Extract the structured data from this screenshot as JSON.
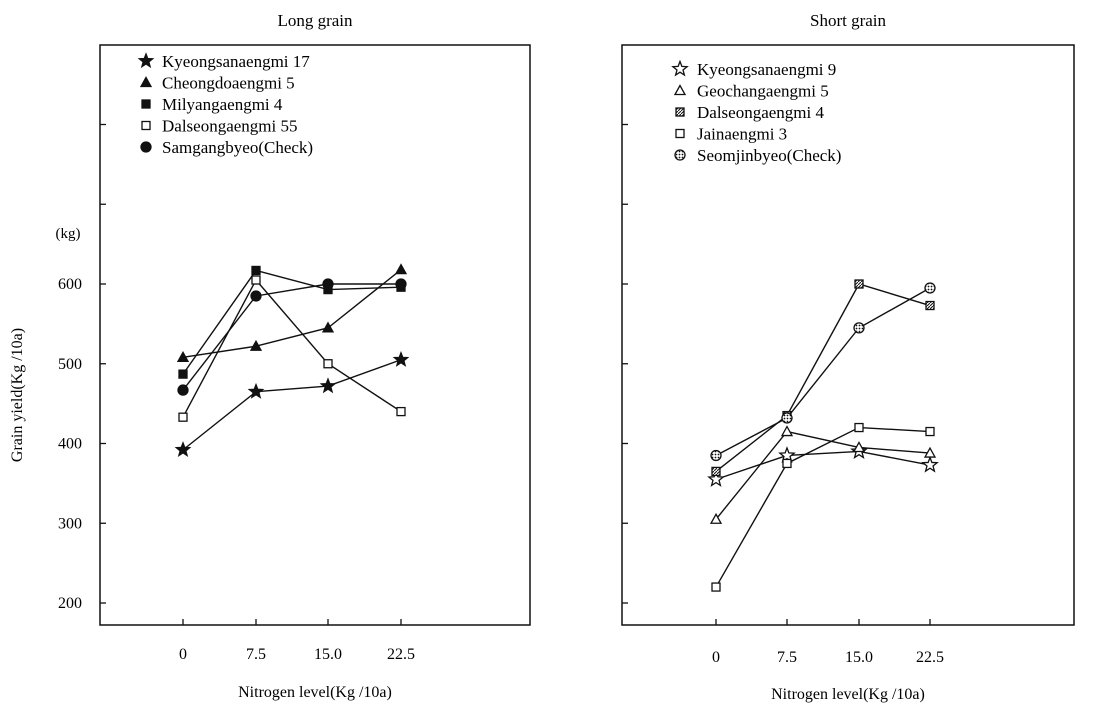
{
  "chart_data": [
    {
      "type": "line",
      "title": "Long grain",
      "xlabel": "Nitrogen level(Kg /10a)",
      "ylabel": "Grain yield(Kg /10a)",
      "yunit": "(kg)",
      "x": [
        0,
        7.5,
        15.0,
        22.5
      ],
      "xtick_labels": [
        "0",
        "7.5",
        "15.0",
        "22.5"
      ],
      "ylim": [
        160,
        1010
      ],
      "yticks": [
        200,
        300,
        400,
        500,
        600
      ],
      "grid": false,
      "legend_position": "top-left",
      "series": [
        {
          "name": "Kyeongsanaengmi 17",
          "marker": "star-filled",
          "values": [
            392,
            465,
            472,
            505
          ]
        },
        {
          "name": "Cheongdoaengmi 5",
          "marker": "triangle-filled",
          "values": [
            508,
            522,
            545,
            618
          ]
        },
        {
          "name": "Milyangaengmi 4",
          "marker": "square-filled",
          "values": [
            487,
            617,
            593,
            596
          ]
        },
        {
          "name": "Dalseongaengmi 55",
          "marker": "square-open",
          "values": [
            433,
            605,
            500,
            440
          ]
        },
        {
          "name": "Samgangbyeo(Check)",
          "marker": "circle-filled",
          "values": [
            467,
            585,
            600,
            600
          ]
        }
      ]
    },
    {
      "type": "line",
      "title": "Short grain",
      "xlabel": "Nitrogen level(Kg /10a)",
      "ylabel": "",
      "x": [
        0,
        7.5,
        15.0,
        22.5
      ],
      "xtick_labels": [
        "0",
        "7.5",
        "15.0",
        "22.5"
      ],
      "ylim": [
        160,
        1010
      ],
      "yticks": [
        200,
        300,
        400,
        500,
        600
      ],
      "grid": false,
      "legend_position": "top-left",
      "series": [
        {
          "name": "Kyeongsanaengmi 9",
          "marker": "star-open",
          "values": [
            355,
            385,
            390,
            373
          ]
        },
        {
          "name": "Geochangaengmi 5",
          "marker": "triangle-open",
          "values": [
            305,
            415,
            395,
            388
          ]
        },
        {
          "name": "Dalseongaengmi 4",
          "marker": "square-hatched",
          "values": [
            365,
            435,
            600,
            573
          ]
        },
        {
          "name": "Jainaengmi 3",
          "marker": "square-open",
          "values": [
            220,
            375,
            420,
            415
          ]
        },
        {
          "name": "Seomjinbyeo(Check)",
          "marker": "circle-dotted",
          "values": [
            385,
            432,
            545,
            595
          ]
        }
      ]
    }
  ]
}
